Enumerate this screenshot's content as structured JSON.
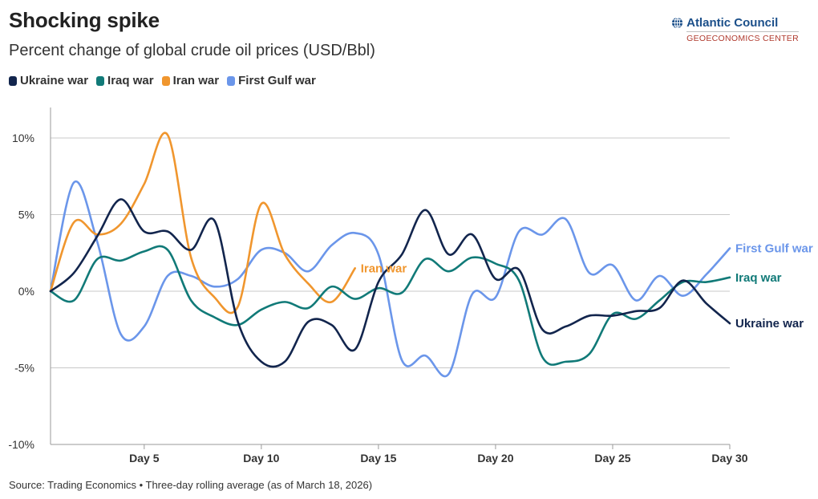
{
  "header": {
    "title": "Shocking spike",
    "subtitle": "Percent change of global crude oil prices (USD/Bbl)"
  },
  "brand": {
    "name": "Atlantic Council",
    "sub": "GEOECONOMICS CENTER",
    "icon": "globe-icon"
  },
  "source": "Source: Trading Economics • Three-day rolling average (as of March 18, 2026)",
  "chart_data": {
    "type": "line",
    "title": "Shocking spike",
    "subtitle": "Percent change of global crude oil prices (USD/Bbl)",
    "xlabel": "",
    "ylabel": "",
    "xlim": [
      1,
      30
    ],
    "ylim": [
      -10,
      10
    ],
    "grid": true,
    "legend": "top-left",
    "x_ticks": [
      5,
      10,
      15,
      20,
      25,
      30
    ],
    "x_tick_labels": [
      "Day 5",
      "Day 10",
      "Day 15",
      "Day 20",
      "Day 25",
      "Day 30"
    ],
    "y_ticks": [
      10,
      5,
      0,
      -5,
      -10
    ],
    "y_tick_labels": [
      "10%",
      "5%",
      "0%",
      "-5%",
      "-10%"
    ],
    "series": [
      {
        "name": "Ukraine war",
        "color": "#12254d",
        "x": [
          1,
          2,
          3,
          4,
          5,
          6,
          7,
          8,
          9,
          10,
          11,
          12,
          13,
          14,
          15,
          16,
          17,
          18,
          19,
          20,
          21,
          22,
          23,
          24,
          25,
          26,
          27,
          28,
          29,
          30
        ],
        "values": [
          0,
          1.2,
          3.6,
          6,
          3.9,
          3.9,
          2.7,
          4.6,
          -2,
          -4.6,
          -4.6,
          -2,
          -2.2,
          -3.8,
          0.6,
          2.4,
          5.3,
          2.4,
          3.7,
          0.8,
          1.4,
          -2.5,
          -2.3,
          -1.6,
          -1.6,
          -1.3,
          -1.1,
          0.7,
          -0.8,
          -2.1
        ]
      },
      {
        "name": "Iraq war",
        "color": "#117a78",
        "x": [
          1,
          2,
          3,
          4,
          5,
          6,
          7,
          8,
          9,
          10,
          11,
          12,
          13,
          14,
          15,
          16,
          17,
          18,
          19,
          20,
          21,
          22,
          23,
          24,
          25,
          26,
          27,
          28,
          29,
          30
        ],
        "values": [
          0,
          -0.6,
          2.1,
          2,
          2.6,
          2.7,
          -0.6,
          -1.7,
          -2.2,
          -1.2,
          -0.7,
          -1.1,
          0.3,
          -0.5,
          0.2,
          -0.1,
          2.1,
          1.3,
          2.2,
          1.8,
          0.7,
          -4.3,
          -4.6,
          -4.1,
          -1.5,
          -1.8,
          -0.6,
          0.6,
          0.6,
          0.9
        ]
      },
      {
        "name": "Iran war",
        "color": "#f0962e",
        "x": [
          1,
          2,
          3,
          4,
          5,
          6,
          7,
          8,
          9,
          10,
          11,
          12,
          13,
          14
        ],
        "values": [
          0,
          4.5,
          3.7,
          4.4,
          7,
          10.2,
          2.2,
          -0.4,
          -1,
          5.7,
          2.4,
          0.5,
          -0.7,
          1.5
        ]
      },
      {
        "name": "First Gulf war",
        "color": "#6b96ea",
        "x": [
          1,
          2,
          3,
          4,
          5,
          6,
          7,
          8,
          9,
          10,
          11,
          12,
          13,
          14,
          15,
          16,
          17,
          18,
          19,
          20,
          21,
          22,
          23,
          24,
          25,
          26,
          27,
          28,
          29,
          30
        ],
        "values": [
          0,
          7.1,
          3.2,
          -2.8,
          -2.3,
          1,
          1,
          0.3,
          0.8,
          2.7,
          2.5,
          1.3,
          3,
          3.8,
          2.4,
          -4.5,
          -4.2,
          -5.4,
          -0.2,
          -0.4,
          3.9,
          3.7,
          4.7,
          1.2,
          1.7,
          -0.6,
          1,
          -0.3,
          1.1,
          2.8
        ]
      }
    ]
  }
}
